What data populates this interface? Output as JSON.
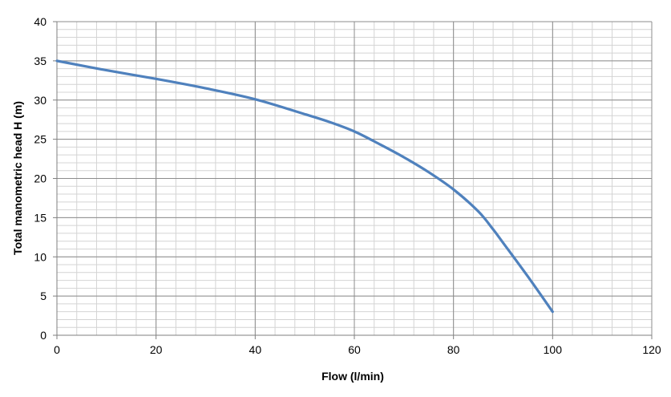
{
  "chart_data": {
    "type": "line",
    "title": "",
    "xlabel": "Flow (l/min)",
    "ylabel": "Total manometric head H (m)",
    "xlim": [
      0,
      120
    ],
    "ylim": [
      0,
      40
    ],
    "x_ticks": [
      0,
      20,
      40,
      60,
      80,
      100,
      120
    ],
    "y_ticks": [
      0,
      5,
      10,
      15,
      20,
      25,
      30,
      35,
      40
    ],
    "x_tick_labels": [
      "0",
      "20",
      "40",
      "60",
      "80",
      "100",
      "120"
    ],
    "y_tick_labels": [
      "0",
      "5",
      "10",
      "15",
      "20",
      "25",
      "30",
      "35",
      "40"
    ],
    "minor_x_step": 4,
    "minor_y_step": 1,
    "grid": true,
    "legend": "none",
    "series": [
      {
        "color": "#4f81bd",
        "x": [
          0,
          10,
          20,
          30,
          40,
          50,
          55,
          60,
          65,
          70,
          75,
          80,
          85,
          88,
          90,
          95,
          100
        ],
        "y": [
          35,
          33.8,
          32.7,
          31.5,
          30.1,
          28.2,
          27.2,
          26.0,
          24.4,
          22.7,
          20.8,
          18.6,
          15.8,
          13.5,
          11.8,
          7.5,
          3
        ]
      }
    ]
  }
}
